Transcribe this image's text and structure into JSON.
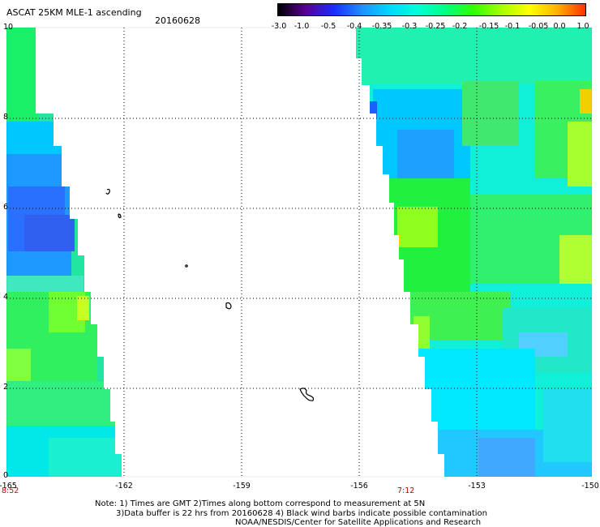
{
  "title": "ASCAT 25KM MLE-1 ascending",
  "date": "20160628",
  "colorbar": {
    "labels": [
      "-3.0",
      "-1.0",
      "-0.5",
      "-0.4",
      "-0.35",
      "-0.3",
      "-0.25",
      "-0.2",
      "-0.15",
      "-0.1",
      "-0.05",
      "0.0",
      "1.0"
    ],
    "colors": [
      "#000000",
      "#5a0096",
      "#1a2cff",
      "#1e8fff",
      "#00d8ff",
      "#00ffd8",
      "#00ff80",
      "#32ff00",
      "#a8ff00",
      "#ffff00",
      "#ffb000",
      "#ff3000"
    ]
  },
  "y_axis": {
    "labels": [
      "10",
      "8",
      "6",
      "4",
      "2",
      "0"
    ]
  },
  "x_axis": {
    "labels": [
      "-165",
      "-162",
      "-159",
      "-156",
      "-153",
      "-150"
    ]
  },
  "pass_times": {
    "left": "8:52",
    "right": "7:12"
  },
  "notes": {
    "line1": "Note: 1) Times are GMT 2)Times along bottom correspond to measurement at 5N",
    "line2": "3)Data buffer is 22 hrs from 20160628 4) Black wind barbs indicate possible contamination",
    "line3": "NOAA/NESDIS/Center for Satellite Applications and Research"
  }
}
